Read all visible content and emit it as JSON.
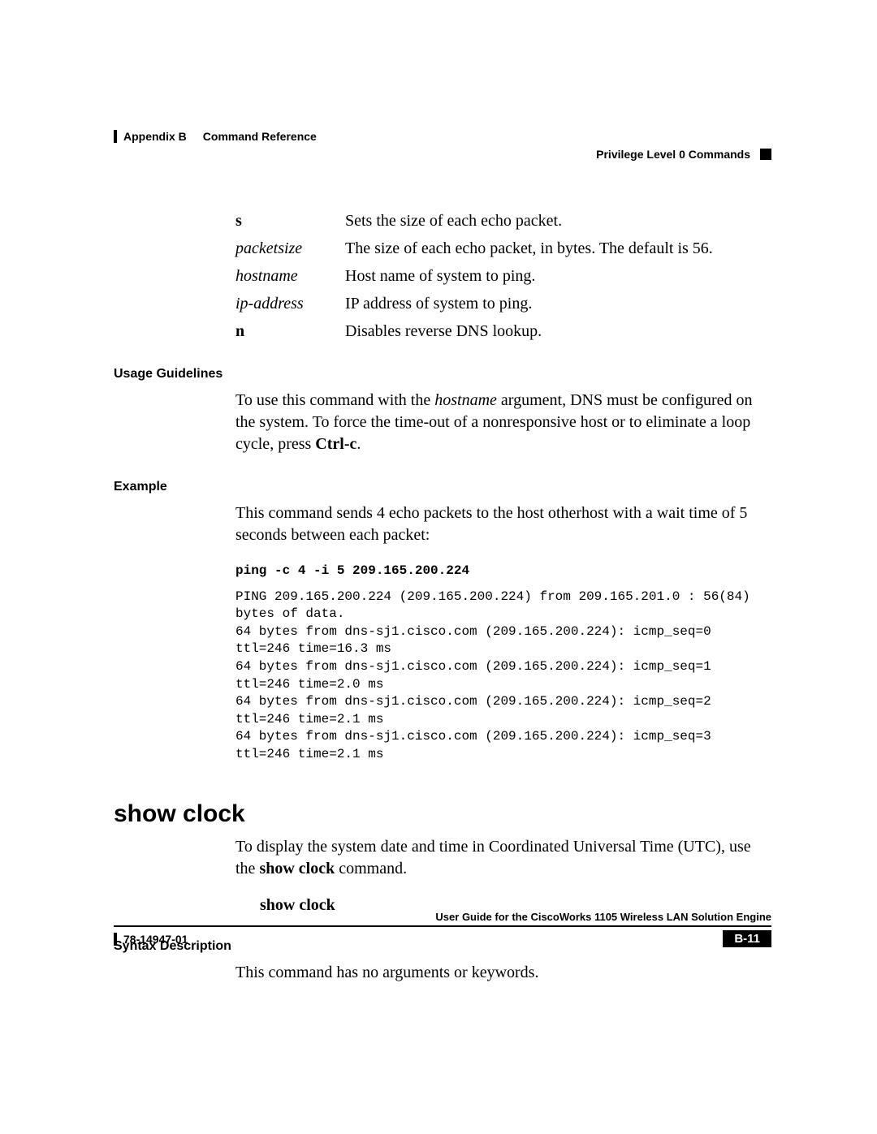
{
  "header": {
    "appendix": "Appendix B",
    "chapter": "Command Reference",
    "section": "Privilege Level 0 Commands"
  },
  "params": [
    {
      "key_text": "s",
      "key_style": "bold",
      "desc": "Sets the size of each echo packet."
    },
    {
      "key_text": "packetsize",
      "key_style": "ital",
      "desc": "The size of each echo packet, in bytes. The default is 56."
    },
    {
      "key_text": "hostname",
      "key_style": "ital",
      "desc": "Host name of system to ping."
    },
    {
      "key_text": "ip-address",
      "key_style": "ital",
      "desc": "IP address of system to ping."
    },
    {
      "key_text": "n",
      "key_style": "bold",
      "desc": "Disables reverse DNS lookup."
    }
  ],
  "usage": {
    "label": "Usage Guidelines",
    "pre": "To use this command with the ",
    "hostname": "hostname",
    "mid": " argument, DNS must be configured on the system. To force the time-out of a nonresponsive host or to eliminate a loop cycle, press ",
    "ctrlc": "Ctrl-c",
    "post": "."
  },
  "example": {
    "label": "Example",
    "intro": "This command sends 4 echo packets to the host otherhost with a wait time of 5 seconds between each packet:",
    "cmd": "ping -c 4 -i 5 209.165.200.224",
    "output": "PING 209.165.200.224 (209.165.200.224) from 209.165.201.0 : 56(84) bytes of data.\n64 bytes from dns-sj1.cisco.com (209.165.200.224): icmp_seq=0 ttl=246 time=16.3 ms\n64 bytes from dns-sj1.cisco.com (209.165.200.224): icmp_seq=1 ttl=246 time=2.0 ms\n64 bytes from dns-sj1.cisco.com (209.165.200.224): icmp_seq=2 ttl=246 time=2.1 ms\n64 bytes from dns-sj1.cisco.com (209.165.200.224): icmp_seq=3 ttl=246 time=2.1 ms"
  },
  "showclock": {
    "title": "show clock",
    "pre": "To display the system date and time in Coordinated Universal Time (UTC), use the ",
    "bold": "show clock",
    "post": " command.",
    "syntax_cmd": "show clock",
    "syntax_label": "Syntax Description",
    "syntax_body": "This command has no arguments or keywords."
  },
  "footer": {
    "title": "User Guide for the CiscoWorks 1105 Wireless LAN Solution Engine",
    "docnum": "78-14947-01",
    "page": "B-11"
  }
}
